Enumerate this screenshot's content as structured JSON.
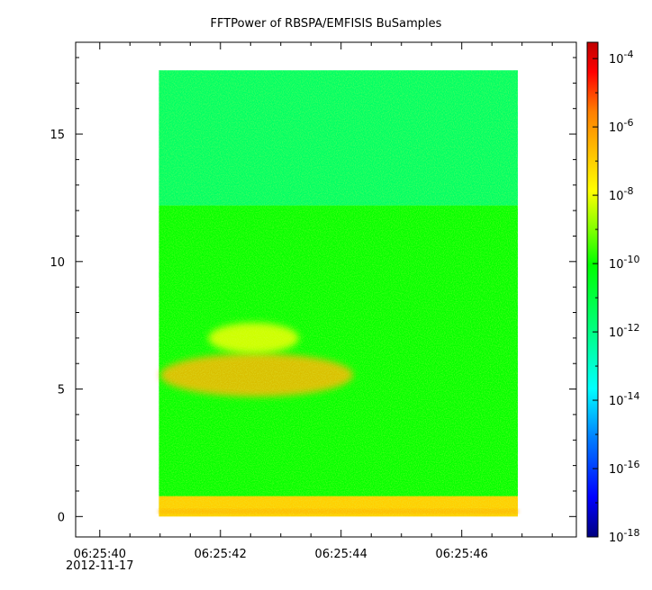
{
  "chart_data": {
    "type": "heatmap",
    "title": "FFTPower of RBSPA/EMFISIS  BuSamples",
    "xlabel": "",
    "ylabel": "",
    "x_ticks": [
      "06:25:40",
      "06:25:42",
      "06:25:44",
      "06:25:46"
    ],
    "x_tick_date": "2012-11-17",
    "x_range": [
      "06:25:39.6",
      "06:25:47.9"
    ],
    "data_x_range": [
      "06:25:40.98",
      "06:25:46.93"
    ],
    "y_ticks": [
      "0",
      "5",
      "10",
      "15"
    ],
    "ylim": [
      -0.8,
      18.6
    ],
    "data_y_range": [
      0,
      17.5
    ],
    "grid": false,
    "colorbar": {
      "scale": "log",
      "range": [
        1e-18,
        0.0003
      ],
      "tick_labels": [
        "10",
        "10",
        "10",
        "10",
        "10",
        "10",
        "10",
        "10"
      ],
      "tick_exponents": [
        "-4",
        "-6",
        "-8",
        "-10",
        "-12",
        "-14",
        "-16",
        "-18"
      ],
      "colormap": [
        "#00007f",
        "#0000ff",
        "#007fff",
        "#00ffff",
        "#00ff7f",
        "#00ff00",
        "#7fff00",
        "#ffff00",
        "#ffbf00",
        "#ff7f00",
        "#ff0000",
        "#bf0000"
      ]
    },
    "features": [
      {
        "label": "background 0-12 Hz",
        "y_range": [
          0.3,
          12.2
        ],
        "power": 1e-10
      },
      {
        "label": "background above 12 Hz",
        "y_range": [
          12.2,
          17.5
        ],
        "power": 3e-12
      },
      {
        "label": "low-frequency band",
        "y_range": [
          0,
          0.8
        ],
        "power": 1e-07
      },
      {
        "label": "band near 5.5",
        "x_range": [
          "06:25:41.0",
          "06:25:44.2"
        ],
        "y_range": [
          4.7,
          6.4
        ],
        "power": 3e-07
      },
      {
        "label": "band near 7",
        "x_range": [
          "06:25:41.8",
          "06:25:43.3"
        ],
        "y_range": [
          6.4,
          7.6
        ],
        "power": 1e-08
      }
    ]
  }
}
